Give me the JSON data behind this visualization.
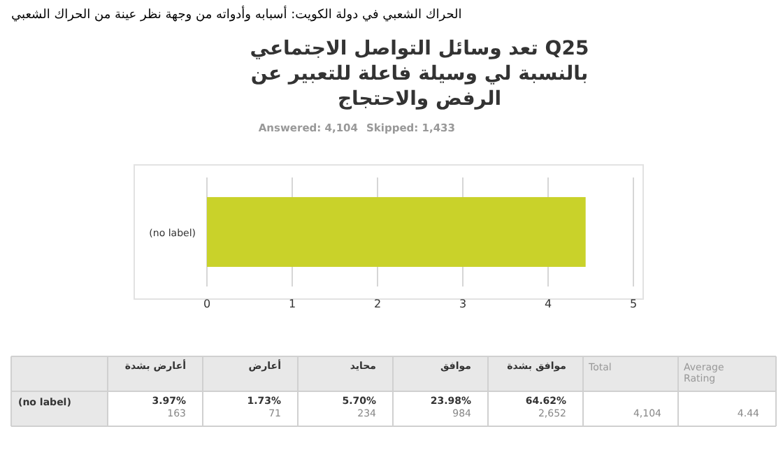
{
  "chart_data": {
    "type": "bar",
    "orientation": "horizontal",
    "subtitle": "الحراك الشعبي في دولة الكويت: أسبابه وأدواته من وجهة نظر عينة من الحراك الشعبي",
    "title": "Q25 تعد وسائل التواصل الاجتماعي بالنسبة لي وسيلة فاعلة للتعبير عن الرفض والاحتجاج",
    "categories": [
      "(no label)"
    ],
    "values": [
      4.44
    ],
    "color": "#c9d22a",
    "xlim": [
      0,
      5
    ],
    "xticks": [
      0,
      1,
      2,
      3,
      4,
      5
    ],
    "grid": "x",
    "annotations": [
      "Answered: 4,104",
      "Skipped: 1,433",
      "أعارض بشدة",
      "أعارض",
      "محايد",
      "موافق",
      "موافق بشدة",
      "Total",
      "Average Rating",
      "3.97%",
      "1.73%",
      "5.70%",
      "23.98%",
      "64.62%",
      "163",
      "71",
      "234",
      "984",
      "2,652",
      "4,104",
      "4.44"
    ]
  }
}
